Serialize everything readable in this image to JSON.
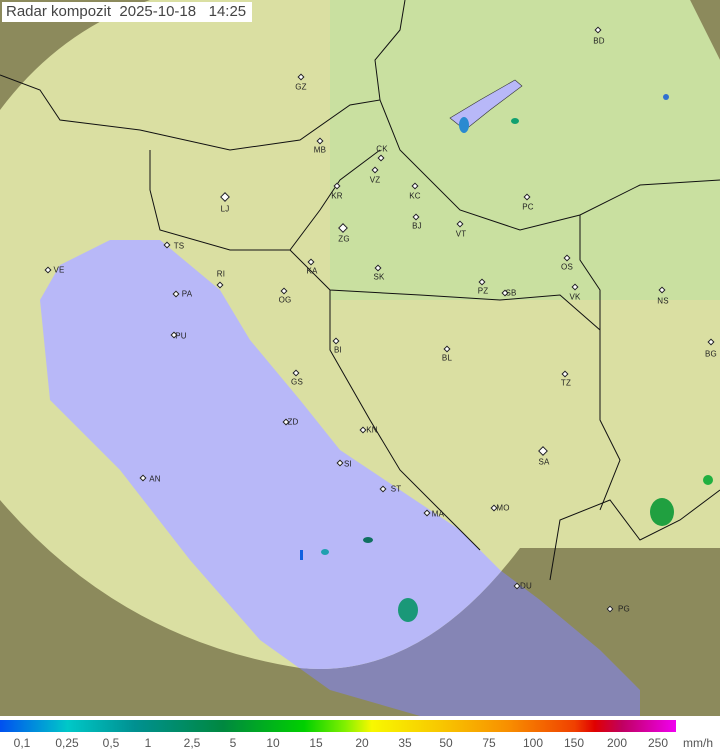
{
  "title": "Radar kompozit  2025-10-18   14:25",
  "colors": {
    "sea_in_range": "#b8b8f8",
    "sea_out_range": "#8585b5",
    "land_in_range": "#d8e0a0",
    "land_out_range": "#8c8a5c",
    "coverage_tint": "#c8e8a0"
  },
  "cities": [
    "BD",
    "GZ",
    "MB",
    "CK",
    "VZ",
    "KR",
    "KC",
    "LJ",
    "PC",
    "ZG",
    "BJ",
    "VT",
    "TS",
    "VE",
    "KA",
    "RI",
    "SK",
    "OS",
    "PZ",
    "SB",
    "VK",
    "NS",
    "PA",
    "OG",
    "PU",
    "BI",
    "BG",
    "BL",
    "GS",
    "TZ",
    "ZD",
    "KN",
    "SA",
    "SI",
    "AN",
    "ST",
    "MO",
    "MA",
    "DU",
    "PG"
  ],
  "legend": {
    "ticks": [
      "0,1",
      "0,25",
      "0,5",
      "1",
      "2,5",
      "5",
      "10",
      "15",
      "20",
      "35",
      "50",
      "75",
      "100",
      "150",
      "200",
      "250"
    ],
    "unit": "mm/h"
  }
}
